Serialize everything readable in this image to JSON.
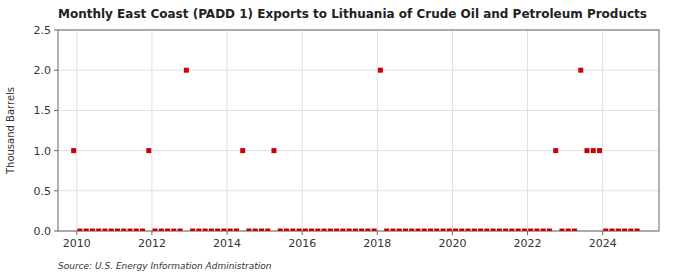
{
  "chart_data": {
    "type": "scatter",
    "title": "Monthly East Coast (PADD 1) Exports to Lithuania of Crude Oil and Petroleum Products",
    "y_label": "Thousand Barrels",
    "annotations": [
      "Source: U.S. Energy Information Administration"
    ],
    "color": "#cc0000",
    "marker": "square",
    "grid": true,
    "xlim": [
      2009.5,
      2025.5
    ],
    "ylim": [
      0,
      2.5
    ],
    "xticks": [
      2010,
      2012,
      2014,
      2016,
      2018,
      2020,
      2022,
      2024
    ],
    "yticks": [
      {
        "value": 0.0,
        "label": "0.0"
      },
      0.5,
      {
        "value": 1.0,
        "label": "1.0"
      },
      1.5,
      {
        "value": 2.0,
        "label": "2.0"
      },
      2.5
    ],
    "x": [
      2009.917,
      2010.083,
      2010.25,
      2010.417,
      2010.583,
      2010.75,
      2010.917,
      2011.083,
      2011.25,
      2011.417,
      2011.583,
      2011.75,
      2011.917,
      2012.083,
      2012.25,
      2012.417,
      2012.583,
      2012.75,
      2012.917,
      2013.083,
      2013.25,
      2013.417,
      2013.583,
      2013.75,
      2013.917,
      2014.083,
      2014.25,
      2014.417,
      2014.583,
      2014.75,
      2014.917,
      2015.083,
      2015.25,
      2015.417,
      2015.583,
      2015.75,
      2015.917,
      2016.083,
      2016.25,
      2016.417,
      2016.583,
      2016.75,
      2016.917,
      2017.083,
      2017.25,
      2017.417,
      2017.583,
      2017.75,
      2017.917,
      2018.083,
      2018.25,
      2018.417,
      2018.583,
      2018.75,
      2018.917,
      2019.083,
      2019.25,
      2019.417,
      2019.583,
      2019.75,
      2019.917,
      2020.083,
      2020.25,
      2020.417,
      2020.583,
      2020.75,
      2020.917,
      2021.083,
      2021.25,
      2021.417,
      2021.583,
      2021.75,
      2021.917,
      2022.083,
      2022.25,
      2022.417,
      2022.583,
      2022.75,
      2022.917,
      2023.083,
      2023.25,
      2023.417,
      2023.583,
      2023.75,
      2023.917,
      2024.083,
      2024.25,
      2024.417,
      2024.583,
      2024.75,
      2024.917
    ],
    "values": [
      1.0,
      0.0,
      0.0,
      0.0,
      0.0,
      0.0,
      0.0,
      0.0,
      0.0,
      0.0,
      0.0,
      0.0,
      1.0,
      0.0,
      0.0,
      0.0,
      0.0,
      0.0,
      2.0,
      0.0,
      0.0,
      0.0,
      0.0,
      0.0,
      0.0,
      0.0,
      0.0,
      1.0,
      0.0,
      0.0,
      0.0,
      0.0,
      1.0,
      0.0,
      0.0,
      0.0,
      0.0,
      0.0,
      0.0,
      0.0,
      0.0,
      0.0,
      0.0,
      0.0,
      0.0,
      0.0,
      0.0,
      0.0,
      0.0,
      2.0,
      0.0,
      0.0,
      0.0,
      0.0,
      0.0,
      0.0,
      0.0,
      0.0,
      0.0,
      0.0,
      0.0,
      0.0,
      0.0,
      0.0,
      0.0,
      0.0,
      0.0,
      0.0,
      0.0,
      0.0,
      0.0,
      0.0,
      0.0,
      0.0,
      0.0,
      0.0,
      0.0,
      1.0,
      0.0,
      0.0,
      0.0,
      2.0,
      1.0,
      1.0,
      1.0,
      0.0,
      0.0,
      0.0,
      0.0,
      0.0,
      0.0
    ]
  }
}
